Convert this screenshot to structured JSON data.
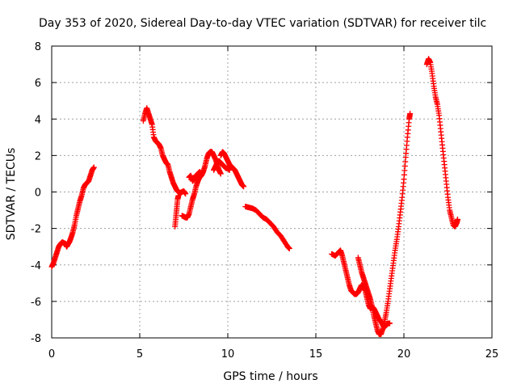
{
  "chart_data": {
    "type": "scatter",
    "title": "Day 353 of 2020, Sidereal Day-to-day VTEC variation (SDTVAR) for receiver tilc",
    "xlabel": "GPS time / hours",
    "ylabel": "SDTVAR / TECUs",
    "xlim": [
      0,
      25
    ],
    "ylim": [
      -8,
      8
    ],
    "xticks": [
      0,
      5,
      10,
      15,
      20,
      25
    ],
    "yticks": [
      -8,
      -6,
      -4,
      -2,
      0,
      2,
      4,
      6,
      8
    ],
    "grid": true,
    "marker": "+",
    "marker_color": "#ff0000",
    "series": [
      {
        "name": "tilc",
        "segments": [
          [
            [
              0.0,
              -4.1
            ],
            [
              0.1,
              -3.9
            ],
            [
              0.2,
              -3.6
            ],
            [
              0.3,
              -3.3
            ],
            [
              0.4,
              -3.0
            ],
            [
              0.5,
              -2.85
            ],
            [
              0.6,
              -2.75
            ],
            [
              0.7,
              -2.8
            ],
            [
              0.8,
              -2.85
            ],
            [
              0.85,
              -3.0
            ],
            [
              0.9,
              -2.9
            ],
            [
              1.0,
              -2.75
            ],
            [
              1.1,
              -2.5
            ],
            [
              1.2,
              -2.2
            ],
            [
              1.3,
              -1.8
            ],
            [
              1.4,
              -1.3
            ],
            [
              1.5,
              -0.9
            ],
            [
              1.6,
              -0.5
            ],
            [
              1.7,
              -0.2
            ],
            [
              1.8,
              0.2
            ],
            [
              1.9,
              0.4
            ],
            [
              2.0,
              0.5
            ],
            [
              2.1,
              0.6
            ],
            [
              2.2,
              0.9
            ],
            [
              2.3,
              1.2
            ],
            [
              2.4,
              1.35
            ]
          ],
          [
            [
              5.2,
              3.9
            ],
            [
              5.3,
              4.3
            ],
            [
              5.4,
              4.6
            ],
            [
              5.5,
              4.3
            ],
            [
              5.6,
              4.0
            ],
            [
              5.7,
              3.7
            ],
            [
              5.8,
              3.0
            ],
            [
              5.9,
              2.8
            ],
            [
              6.0,
              2.7
            ],
            [
              6.1,
              2.6
            ],
            [
              6.2,
              2.4
            ],
            [
              6.3,
              2.0
            ],
            [
              6.4,
              1.8
            ],
            [
              6.5,
              1.6
            ],
            [
              6.6,
              1.5
            ],
            [
              6.7,
              1.1
            ],
            [
              6.8,
              0.8
            ],
            [
              6.9,
              0.5
            ],
            [
              7.0,
              0.3
            ],
            [
              7.1,
              0.1
            ],
            [
              7.2,
              0.0
            ],
            [
              7.3,
              -0.05
            ],
            [
              7.4,
              0.0
            ],
            [
              7.5,
              0.05
            ],
            [
              7.6,
              -0.1
            ]
          ],
          [
            [
              7.0,
              -1.9
            ],
            [
              7.05,
              -1.4
            ],
            [
              7.1,
              -0.9
            ],
            [
              7.15,
              -0.4
            ],
            [
              7.2,
              -0.2
            ]
          ],
          [
            [
              7.4,
              -1.3
            ],
            [
              7.5,
              -1.35
            ],
            [
              7.6,
              -1.4
            ],
            [
              7.7,
              -1.4
            ],
            [
              7.8,
              -1.2
            ],
            [
              7.9,
              -0.8
            ],
            [
              8.0,
              -0.4
            ],
            [
              8.1,
              -0.1
            ],
            [
              8.2,
              0.3
            ],
            [
              8.3,
              0.6
            ],
            [
              8.4,
              0.8
            ],
            [
              8.5,
              0.9
            ],
            [
              8.6,
              1.1
            ],
            [
              8.7,
              1.4
            ],
            [
              8.8,
              1.8
            ],
            [
              8.9,
              2.1
            ],
            [
              9.0,
              2.2
            ],
            [
              9.1,
              2.2
            ],
            [
              9.2,
              2.0
            ],
            [
              9.3,
              1.8
            ],
            [
              9.4,
              1.5
            ],
            [
              9.5,
              1.2
            ],
            [
              9.6,
              1.0
            ]
          ],
          [
            [
              7.8,
              0.8
            ],
            [
              7.9,
              0.9
            ],
            [
              8.0,
              0.6
            ],
            [
              8.1,
              0.7
            ],
            [
              8.2,
              0.9
            ],
            [
              8.3,
              1.0
            ],
            [
              8.4,
              1.1
            ],
            [
              8.5,
              1.0
            ]
          ],
          [
            [
              9.6,
              2.0
            ],
            [
              9.7,
              2.2
            ],
            [
              9.8,
              2.1
            ],
            [
              9.9,
              1.9
            ],
            [
              10.0,
              1.7
            ],
            [
              10.1,
              1.5
            ],
            [
              10.2,
              1.4
            ],
            [
              10.3,
              1.3
            ],
            [
              10.4,
              1.2
            ],
            [
              10.5,
              1.0
            ],
            [
              10.6,
              0.8
            ],
            [
              10.7,
              0.6
            ],
            [
              10.8,
              0.4
            ],
            [
              10.9,
              0.3
            ]
          ],
          [
            [
              9.2,
              1.2
            ],
            [
              9.3,
              1.4
            ],
            [
              9.4,
              1.6
            ],
            [
              9.5,
              1.7
            ],
            [
              9.6,
              1.6
            ],
            [
              9.7,
              1.5
            ],
            [
              9.8,
              1.4
            ],
            [
              9.9,
              1.3
            ],
            [
              10.0,
              1.3
            ],
            [
              10.1,
              1.2
            ]
          ],
          [
            [
              11.0,
              -0.8
            ],
            [
              11.2,
              -0.85
            ],
            [
              11.4,
              -0.9
            ],
            [
              11.6,
              -1.0
            ],
            [
              11.8,
              -1.2
            ],
            [
              12.0,
              -1.4
            ],
            [
              12.2,
              -1.5
            ],
            [
              12.4,
              -1.7
            ],
            [
              12.6,
              -1.9
            ],
            [
              12.8,
              -2.2
            ],
            [
              13.0,
              -2.4
            ],
            [
              13.2,
              -2.7
            ],
            [
              13.4,
              -3.0
            ],
            [
              13.5,
              -3.1
            ]
          ],
          [
            [
              15.9,
              -3.4
            ],
            [
              16.1,
              -3.5
            ],
            [
              16.3,
              -3.3
            ],
            [
              16.4,
              -3.2
            ],
            [
              16.5,
              -3.5
            ],
            [
              16.6,
              -3.9
            ],
            [
              16.7,
              -4.3
            ],
            [
              16.8,
              -4.7
            ],
            [
              16.9,
              -5.1
            ],
            [
              17.0,
              -5.4
            ],
            [
              17.1,
              -5.5
            ],
            [
              17.2,
              -5.6
            ],
            [
              17.3,
              -5.6
            ],
            [
              17.4,
              -5.5
            ],
            [
              17.5,
              -5.3
            ],
            [
              17.6,
              -5.1
            ],
            [
              17.7,
              -5.2
            ],
            [
              17.8,
              -5.4
            ],
            [
              17.9,
              -5.8
            ],
            [
              18.0,
              -6.2
            ],
            [
              18.1,
              -6.4
            ],
            [
              18.2,
              -6.3
            ],
            [
              18.3,
              -6.4
            ],
            [
              18.4,
              -6.6
            ],
            [
              18.5,
              -6.8
            ],
            [
              18.6,
              -7.0
            ],
            [
              18.7,
              -7.1
            ],
            [
              18.8,
              -7.3
            ],
            [
              18.9,
              -7.4
            ],
            [
              19.0,
              -7.3
            ],
            [
              19.1,
              -7.2
            ],
            [
              19.2,
              -7.2
            ]
          ],
          [
            [
              17.4,
              -3.6
            ],
            [
              17.5,
              -4.0
            ],
            [
              17.6,
              -4.4
            ],
            [
              17.7,
              -4.7
            ],
            [
              17.8,
              -5.0
            ],
            [
              17.9,
              -5.3
            ],
            [
              18.0,
              -5.6
            ],
            [
              18.1,
              -5.9
            ],
            [
              18.2,
              -6.3
            ],
            [
              18.3,
              -6.8
            ],
            [
              18.4,
              -7.2
            ],
            [
              18.5,
              -7.6
            ],
            [
              18.6,
              -7.8
            ],
            [
              18.7,
              -7.8
            ],
            [
              18.8,
              -7.5
            ],
            [
              18.9,
              -7.1
            ],
            [
              19.0,
              -6.6
            ],
            [
              19.1,
              -6.0
            ],
            [
              19.2,
              -5.3
            ],
            [
              19.3,
              -4.6
            ],
            [
              19.4,
              -3.9
            ],
            [
              19.5,
              -3.2
            ],
            [
              19.6,
              -2.6
            ],
            [
              19.7,
              -1.9
            ],
            [
              19.8,
              -1.1
            ],
            [
              19.9,
              -0.3
            ],
            [
              20.0,
              0.7
            ],
            [
              20.1,
              1.9
            ],
            [
              20.2,
              3.0
            ],
            [
              20.3,
              4.0
            ],
            [
              20.35,
              4.3
            ]
          ],
          [
            [
              21.3,
              7.0
            ],
            [
              21.4,
              7.3
            ],
            [
              21.5,
              7.1
            ],
            [
              21.6,
              6.5
            ],
            [
              21.7,
              5.8
            ],
            [
              21.8,
              5.2
            ],
            [
              21.9,
              4.8
            ],
            [
              22.0,
              4.2
            ],
            [
              22.1,
              3.3
            ],
            [
              22.2,
              2.4
            ],
            [
              22.3,
              1.5
            ],
            [
              22.4,
              0.6
            ],
            [
              22.5,
              -0.3
            ],
            [
              22.6,
              -1.0
            ],
            [
              22.7,
              -1.4
            ],
            [
              22.8,
              -1.8
            ],
            [
              22.9,
              -1.9
            ],
            [
              23.0,
              -1.7
            ],
            [
              23.05,
              -1.5
            ]
          ]
        ]
      }
    ]
  }
}
